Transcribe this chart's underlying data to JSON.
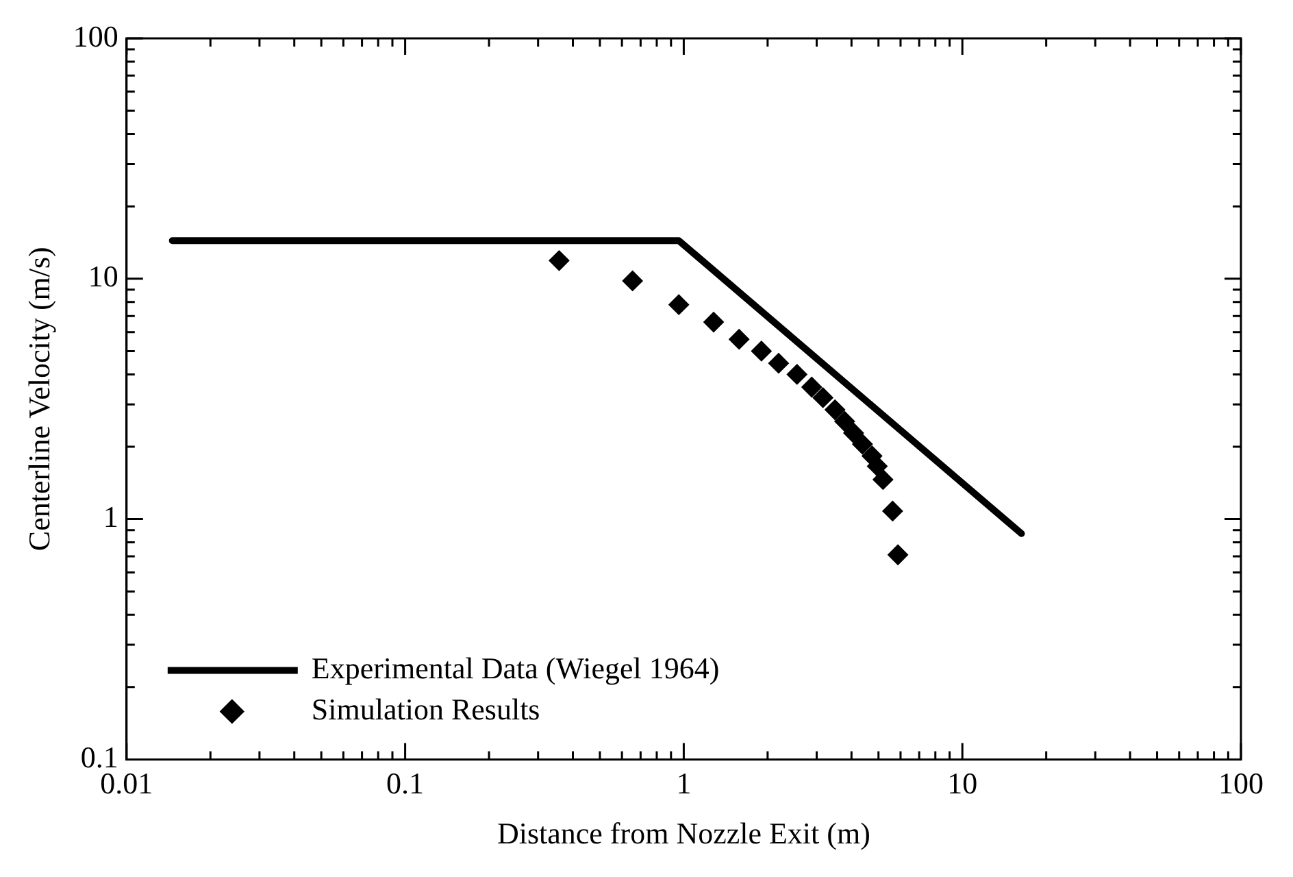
{
  "chart_data": {
    "type": "scatter",
    "xlabel": "Distance from Nozzle Exit (m)",
    "ylabel": "Centerline Velocity (m/s)",
    "log": "xy",
    "grid": false,
    "legend": "bottom left",
    "xlim": [
      0.01,
      100
    ],
    "ylim": [
      0.1,
      100
    ],
    "xticks": [
      0.01,
      {
        "value": 0.02,
        "label": null
      },
      {
        "value": 0.03,
        "label": null
      },
      {
        "value": 0.04,
        "label": null
      },
      {
        "value": 0.05,
        "label": null
      },
      {
        "value": 0.06,
        "label": null
      },
      {
        "value": 0.07,
        "label": null
      },
      {
        "value": 0.08,
        "label": null
      },
      {
        "value": 0.09,
        "label": null
      },
      0.1,
      {
        "value": 0.2,
        "label": null
      },
      {
        "value": 0.3,
        "label": null
      },
      {
        "value": 0.4,
        "label": null
      },
      {
        "value": 0.5,
        "label": null
      },
      {
        "value": 0.6,
        "label": null
      },
      {
        "value": 0.7,
        "label": null
      },
      {
        "value": 0.8,
        "label": null
      },
      {
        "value": 0.9,
        "label": null
      },
      1,
      {
        "value": 2,
        "label": null
      },
      {
        "value": 3,
        "label": null
      },
      {
        "value": 4,
        "label": null
      },
      {
        "value": 5,
        "label": null
      },
      {
        "value": 6,
        "label": null
      },
      {
        "value": 7,
        "label": null
      },
      {
        "value": 8,
        "label": null
      },
      {
        "value": 9,
        "label": null
      },
      10,
      {
        "value": 20,
        "label": null
      },
      {
        "value": 30,
        "label": null
      },
      {
        "value": 40,
        "label": null
      },
      {
        "value": 50,
        "label": null
      },
      {
        "value": 60,
        "label": null
      },
      {
        "value": 70,
        "label": null
      },
      {
        "value": 80,
        "label": null
      },
      {
        "value": 90,
        "label": null
      },
      100
    ],
    "yticks": [
      0.1,
      {
        "value": 0.2,
        "label": null
      },
      {
        "value": 0.3,
        "label": null
      },
      {
        "value": 0.4,
        "label": null
      },
      {
        "value": 0.5,
        "label": null
      },
      {
        "value": 0.6,
        "label": null
      },
      {
        "value": 0.7,
        "label": null
      },
      {
        "value": 0.8,
        "label": null
      },
      {
        "value": 0.9,
        "label": null
      },
      1,
      {
        "value": 2,
        "label": null
      },
      {
        "value": 3,
        "label": null
      },
      {
        "value": 4,
        "label": null
      },
      {
        "value": 5,
        "label": null
      },
      {
        "value": 6,
        "label": null
      },
      {
        "value": 7,
        "label": null
      },
      {
        "value": 8,
        "label": null
      },
      {
        "value": 9,
        "label": null
      },
      10,
      {
        "value": 20,
        "label": null
      },
      {
        "value": 30,
        "label": null
      },
      {
        "value": 40,
        "label": null
      },
      {
        "value": 50,
        "label": null
      },
      {
        "value": 60,
        "label": null
      },
      {
        "value": 70,
        "label": null
      },
      {
        "value": 80,
        "label": null
      },
      {
        "value": 90,
        "label": null
      },
      100
    ],
    "series": [
      {
        "name": "Experimental Data (Wiegel 1964)",
        "type": "line",
        "color": "#000000",
        "marker": "none",
        "line_style": "solid",
        "x": [
          0.0146,
          0.96,
          16.3
        ],
        "values": [
          14.4,
          14.4,
          0.87
        ]
      },
      {
        "name": "Simulation Results",
        "type": "scatter",
        "color": "#000000",
        "marker": "diamond",
        "x": [
          0.357,
          0.655,
          0.96,
          1.28,
          1.58,
          1.9,
          2.19,
          2.55,
          2.88,
          3.16,
          3.49,
          3.78,
          4.07,
          4.38,
          4.74,
          4.95,
          5.19,
          5.62,
          5.87
        ],
        "values": [
          11.9,
          9.8,
          7.8,
          6.6,
          5.6,
          5.0,
          4.45,
          4.0,
          3.54,
          3.2,
          2.85,
          2.55,
          2.28,
          2.05,
          1.83,
          1.66,
          1.46,
          1.08,
          0.71
        ]
      }
    ]
  }
}
